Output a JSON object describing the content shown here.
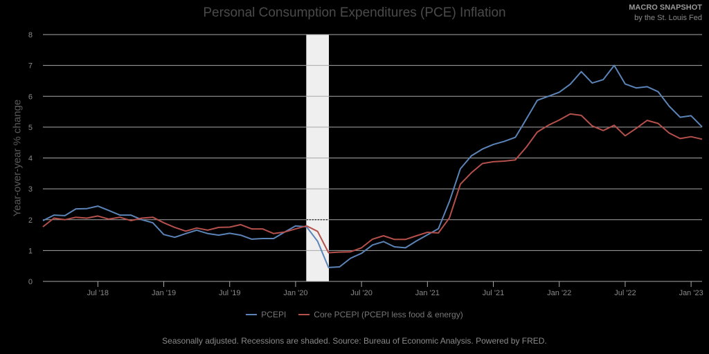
{
  "header": {
    "title": "Personal Consumption Expenditures (PCE) Inflation",
    "brand_title": "MACRO SNAPSHOT",
    "brand_sub": "by the St. Louis Fed"
  },
  "footer": {
    "text": "Seasonally adjusted. Recessions are shaded. Source: Bureau of Economic Analysis. Powered by FRED."
  },
  "colors": {
    "pcepi": "#5b84b8",
    "core": "#b5504b",
    "grid": "#a8a8a8",
    "recession": "#efefef"
  },
  "chart_data": {
    "type": "line",
    "title": "Personal Consumption Expenditures (PCE) Inflation",
    "xlabel": "",
    "ylabel": "Year-over-year % change",
    "ylim": [
      0,
      8
    ],
    "yticks": [
      "0",
      "1",
      "2",
      "3",
      "4",
      "5",
      "6",
      "7",
      "8"
    ],
    "start_month": "2018-02",
    "frequency": "monthly",
    "xticks": [
      {
        "label": "Jul '18",
        "index": 5
      },
      {
        "label": "Jan '19",
        "index": 11
      },
      {
        "label": "Jul '19",
        "index": 17
      },
      {
        "label": "Jan '20",
        "index": 23
      },
      {
        "label": "Jul '20",
        "index": 29
      },
      {
        "label": "Jan '21",
        "index": 35
      },
      {
        "label": "Jul '21",
        "index": 41
      },
      {
        "label": "Jan '22",
        "index": 47
      },
      {
        "label": "Jul '22",
        "index": 53
      },
      {
        "label": "Jan '23",
        "index": 59
      }
    ],
    "recession": {
      "start_index": 24,
      "end_index": 26
    },
    "reference_line": 2,
    "grid": true,
    "legend_position": "bottom",
    "series": [
      {
        "name": "PCEPI",
        "values": [
          1.97,
          2.15,
          2.13,
          2.35,
          2.36,
          2.44,
          2.3,
          2.15,
          2.15,
          2.0,
          1.9,
          1.52,
          1.43,
          1.55,
          1.66,
          1.55,
          1.5,
          1.56,
          1.5,
          1.37,
          1.39,
          1.39,
          1.6,
          1.8,
          1.77,
          1.3,
          0.45,
          0.47,
          0.75,
          0.91,
          1.18,
          1.29,
          1.12,
          1.09,
          1.31,
          1.51,
          1.71,
          2.59,
          3.65,
          4.07,
          4.29,
          4.44,
          4.54,
          4.67,
          5.26,
          5.87,
          6.0,
          6.13,
          6.39,
          6.8,
          6.43,
          6.54,
          7.0,
          6.4,
          6.27,
          6.31,
          6.15,
          5.68,
          5.32,
          5.37,
          5.01
        ]
      },
      {
        "name": "Core PCEPI (PCEPI less food & energy)",
        "values": [
          1.77,
          2.05,
          2.0,
          2.08,
          2.05,
          2.12,
          2.02,
          2.08,
          1.97,
          2.05,
          2.08,
          1.9,
          1.75,
          1.63,
          1.73,
          1.66,
          1.75,
          1.76,
          1.84,
          1.7,
          1.7,
          1.55,
          1.6,
          1.7,
          1.8,
          1.62,
          0.93,
          0.95,
          0.96,
          1.09,
          1.37,
          1.48,
          1.36,
          1.36,
          1.48,
          1.59,
          1.57,
          2.06,
          3.15,
          3.52,
          3.82,
          3.88,
          3.9,
          3.94,
          4.35,
          4.84,
          5.06,
          5.23,
          5.43,
          5.38,
          5.04,
          4.89,
          5.06,
          4.72,
          4.96,
          5.22,
          5.12,
          4.81,
          4.63,
          4.69,
          4.61
        ]
      }
    ]
  }
}
